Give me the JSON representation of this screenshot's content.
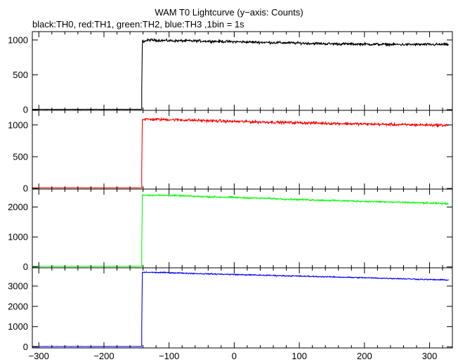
{
  "chart_data": {
    "type": "line",
    "title": "WAM T0 Lightcurve (y−axis: Counts)",
    "subtitle": "black:TH0, red:TH1, green:TH2, blue:TH3 ,1bin = 1s",
    "xlim": [
      -310,
      335
    ],
    "x_ticks": [
      -300,
      -200,
      -100,
      0,
      100,
      200,
      300
    ],
    "x_tick_labels": [
      "−300",
      "−200",
      "−100",
      "0",
      "100",
      "200",
      "300"
    ],
    "grid": false,
    "panels": [
      {
        "name": "TH0",
        "color": "#000000",
        "ylim": [
          -10,
          1120
        ],
        "y_ticks": [
          0,
          500,
          1000
        ],
        "pre_level": 5,
        "onset_x": -142,
        "spike_y": 300,
        "post_points": [
          [
            -140,
            980
          ],
          [
            -130,
            1000
          ],
          [
            -100,
            990
          ],
          [
            -50,
            985
          ],
          [
            0,
            975
          ],
          [
            50,
            965
          ],
          [
            100,
            955
          ],
          [
            150,
            945
          ],
          [
            200,
            940
          ],
          [
            250,
            935
          ],
          [
            300,
            935
          ],
          [
            330,
            935
          ]
        ],
        "noise": 30
      },
      {
        "name": "TH1",
        "color": "#ff0000",
        "ylim": [
          -10,
          1230
        ],
        "y_ticks": [
          0,
          500,
          1000
        ],
        "pre_level": 10,
        "onset_x": -142,
        "spike_y": 330,
        "post_points": [
          [
            -140,
            1090
          ],
          [
            -100,
            1085
          ],
          [
            -50,
            1070
          ],
          [
            0,
            1055
          ],
          [
            50,
            1045
          ],
          [
            100,
            1035
          ],
          [
            150,
            1025
          ],
          [
            200,
            1015
          ],
          [
            250,
            1005
          ],
          [
            300,
            1000
          ],
          [
            330,
            995
          ]
        ],
        "noise": 35
      },
      {
        "name": "TH2",
        "color": "#00ff00",
        "ylim": [
          -30,
          2600
        ],
        "y_ticks": [
          0,
          1000,
          2000
        ],
        "pre_level": 20,
        "onset_x": -142,
        "spike_y": 700,
        "post_points": [
          [
            -140,
            2400
          ],
          [
            -100,
            2390
          ],
          [
            -50,
            2350
          ],
          [
            0,
            2320
          ],
          [
            50,
            2290
          ],
          [
            100,
            2250
          ],
          [
            150,
            2220
          ],
          [
            200,
            2190
          ],
          [
            250,
            2160
          ],
          [
            300,
            2130
          ],
          [
            330,
            2110
          ]
        ],
        "noise": 45
      },
      {
        "name": "TH3",
        "color": "#0000ff",
        "ylim": [
          -50,
          3900
        ],
        "y_ticks": [
          0,
          1000,
          2000,
          3000
        ],
        "pre_level": 20,
        "onset_x": -142,
        "spike_y": 1050,
        "post_points": [
          [
            -140,
            3680
          ],
          [
            -100,
            3660
          ],
          [
            -50,
            3610
          ],
          [
            0,
            3570
          ],
          [
            50,
            3530
          ],
          [
            100,
            3490
          ],
          [
            150,
            3450
          ],
          [
            200,
            3410
          ],
          [
            250,
            3370
          ],
          [
            300,
            3320
          ],
          [
            330,
            3300
          ]
        ],
        "noise": 45
      }
    ]
  }
}
